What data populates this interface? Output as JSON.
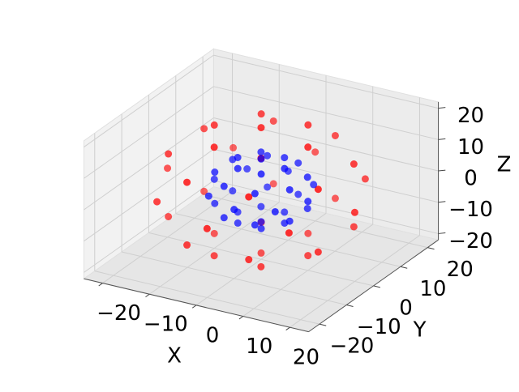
{
  "chart_data": {
    "type": "scatter3d",
    "xlabel": "X",
    "ylabel": "Y",
    "zlabel": "Z",
    "xlim": [
      -24,
      24
    ],
    "ylim": [
      -24,
      24
    ],
    "zlim": [
      -22,
      22
    ],
    "xticks": [
      {
        "value": -20,
        "label": "−20"
      },
      {
        "value": -10,
        "label": "−10"
      },
      0,
      10,
      20
    ],
    "yticks": [
      {
        "value": -20,
        "label": "−20"
      },
      {
        "value": -10,
        "label": "−10"
      },
      0,
      10,
      20
    ],
    "zticks": [
      {
        "value": -20,
        "label": "−20"
      },
      {
        "value": -10,
        "label": "−10"
      },
      0,
      10,
      20
    ],
    "grid": true,
    "series": [
      {
        "color": "#ff0000",
        "x": [
          20,
          14.1,
          0,
          -14.1,
          -20,
          -14.1,
          0,
          14.1,
          16,
          6.6,
          -6.6,
          -16,
          -16,
          -6.6,
          6.6,
          16,
          16,
          6.6,
          -6.6,
          -16,
          -16,
          -6.6,
          6.6,
          16,
          10,
          5,
          -5,
          -10,
          -5,
          5,
          10,
          5,
          -5,
          -10,
          -5,
          5,
          0,
          0
        ],
        "y": [
          0,
          14.1,
          20,
          14.1,
          0,
          -14.1,
          -20,
          -14.1,
          6.6,
          16,
          16,
          6.6,
          -6.6,
          -16,
          -16,
          -6.6,
          6.6,
          16,
          16,
          6.6,
          -6.6,
          -16,
          -16,
          -6.6,
          0,
          8.7,
          8.7,
          0,
          -8.7,
          -8.7,
          0,
          8.7,
          8.7,
          0,
          -8.7,
          -8.7,
          0,
          0
        ],
        "z": [
          0,
          0,
          0,
          0,
          0,
          0,
          0,
          0,
          10,
          10,
          10,
          10,
          10,
          10,
          10,
          10,
          -10,
          -10,
          -10,
          -10,
          -10,
          -10,
          -10,
          -10,
          17.3,
          17.3,
          17.3,
          17.3,
          17.3,
          17.3,
          -17.3,
          -17.3,
          -17.3,
          -17.3,
          -17.3,
          -17.3,
          20,
          -20
        ]
      },
      {
        "color": "#0000ff",
        "x": [
          10,
          7.1,
          0,
          -7.1,
          -10,
          -7.1,
          0,
          7.1,
          8,
          3.3,
          -3.3,
          -8,
          -8,
          -3.3,
          3.3,
          8,
          8,
          3.3,
          -3.3,
          -8,
          -8,
          -3.3,
          3.3,
          8,
          5,
          2.5,
          -2.5,
          -5,
          -2.5,
          2.5,
          5,
          2.5,
          -2.5,
          -5,
          -2.5,
          2.5,
          0,
          0
        ],
        "y": [
          0,
          7.1,
          10,
          7.1,
          0,
          -7.1,
          -10,
          -7.1,
          3.3,
          8,
          8,
          3.3,
          -3.3,
          -8,
          -8,
          -3.3,
          3.3,
          8,
          8,
          3.3,
          -3.3,
          -8,
          -8,
          -3.3,
          0,
          4.3,
          4.3,
          0,
          -4.3,
          -4.3,
          0,
          4.3,
          4.3,
          0,
          -4.3,
          -4.3,
          0,
          0
        ],
        "z": [
          0,
          0,
          0,
          0,
          0,
          0,
          0,
          0,
          5,
          5,
          5,
          5,
          5,
          5,
          5,
          5,
          -5,
          -5,
          -5,
          -5,
          -5,
          -5,
          -5,
          -5,
          8.7,
          8.7,
          8.7,
          8.7,
          8.7,
          8.7,
          -8.7,
          -8.7,
          -8.7,
          -8.7,
          -8.7,
          -8.7,
          10,
          -10
        ]
      }
    ]
  }
}
